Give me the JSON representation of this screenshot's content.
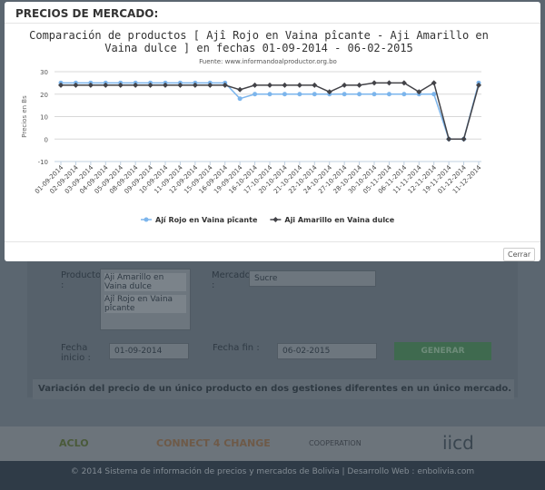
{
  "modal": {
    "heading": "PRECIOS DE MERCADO:",
    "close_button": "Cerrar"
  },
  "chart_data": {
    "type": "line",
    "title": "Comparación de productos [ Ajî Rojo en Vaina pîcante - Aji Amarillo en Vaina dulce ] en fechas 01-09-2014 - 06-02-2015",
    "subtitle": "Fuente: www.informandoalproductor.org.bo",
    "y_label": "Precios en Bs",
    "categories": [
      "01-09-2014",
      "02-09-2014",
      "03-09-2014",
      "04-09-2014",
      "05-09-2014",
      "08-09-2014",
      "09-09-2014",
      "10-09-2014",
      "11-09-2014",
      "12-09-2014",
      "15-09-2014",
      "16-09-2014",
      "19-09-2014",
      "16-10-2014",
      "17-10-2014",
      "20-10-2014",
      "21-10-2014",
      "22-10-2014",
      "24-10-2014",
      "27-10-2014",
      "28-10-2014",
      "30-10-2014",
      "05-11-2014",
      "06-11-2014",
      "11-11-2014",
      "12-11-2014",
      "19-11-2014",
      "01-12-2014",
      "11-12-2014"
    ],
    "series": [
      {
        "name": "Ají Rojo en Vaina pîcante",
        "color": "#7cb5ec",
        "values": [
          25,
          25,
          25,
          25,
          25,
          25,
          25,
          25,
          25,
          25,
          25,
          25,
          18,
          20,
          20,
          20,
          20,
          20,
          20,
          20,
          20,
          20,
          20,
          20,
          20,
          20,
          0,
          0,
          25
        ]
      },
      {
        "name": "Aji Amarillo en Vaina dulce",
        "color": "#434348",
        "values": [
          24,
          24,
          24,
          24,
          24,
          24,
          24,
          24,
          24,
          24,
          24,
          24,
          22,
          24,
          24,
          24,
          24,
          24,
          21,
          24,
          24,
          25,
          25,
          25,
          21,
          25,
          0,
          0,
          24
        ]
      }
    ],
    "ylim": [
      -10,
      30
    ],
    "yticks": [
      -10,
      0,
      10,
      20,
      30
    ],
    "grid": true,
    "legend": "bottom"
  },
  "background": {
    "products_label": "Productos :",
    "products": [
      "Aji Amarillo en Vaina dulce",
      "Ajî Rojo en Vaina pîcante"
    ],
    "market_label": "Mercado :",
    "market": "Sucre",
    "start_label": "Fecha inicio :",
    "start_date": "01-09-2014",
    "end_label": "Fecha fin :",
    "end_date": "06-02-2015",
    "generate_button": "GENERAR",
    "section": "Variación del precio de un único producto en dos gestiones diferentes en un único mercado.",
    "logos": [
      "ACLO",
      "CONNECT 4 CHANGE",
      "COOPERATION",
      "iicd"
    ],
    "footer": "© 2014 Sistema de información de precios y mercados de Bolivia | Desarrollo Web : enbolivia.com"
  }
}
